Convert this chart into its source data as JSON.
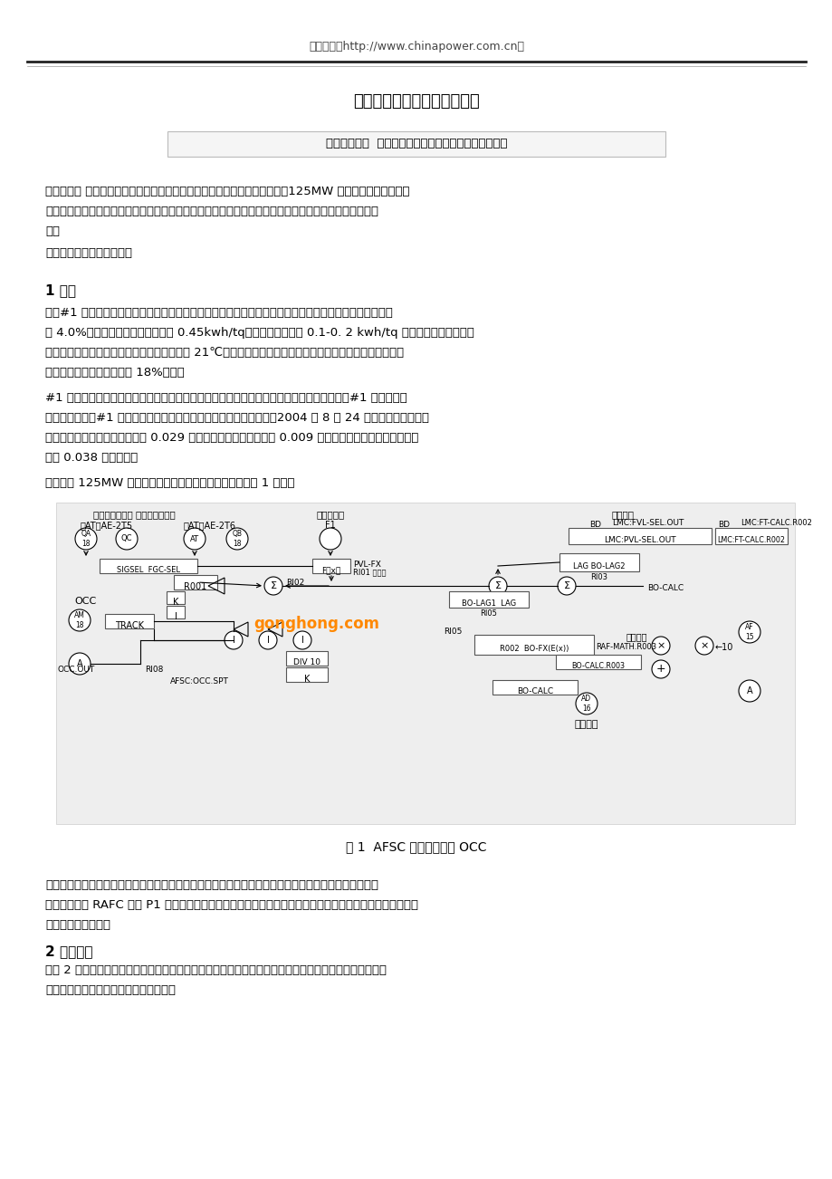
{
  "title": "氧化锆分析仪测氧原理及应用",
  "author_line": "作者：侯典来  单位：中国国电集团公司菏泽发电厂热工",
  "abstract_lines": [
    "【摘要：】 本文通过氧化锆分析仪在菏泽电厂的成功应用案例，详细论述了125MW 机组锅炉采用氧化锆氧",
    "量变送器测定烟气中的含氧量工作原理，仪器结构、性能和标定方法，锆头安装与更换，故障判断和消除",
    "等。"
  ],
  "keyword_line": "【关键词：】氧化锆，标定",
  "section1_title": "1 前言",
  "section1_para1_lines": [
    "针对#1 机组送风单耗升高、氧量高负荷上不去问题进行了全面分析，通过检查发现，送风机全开，氧量只",
    "有 4.0%左右，同时送风机单耗上升 0.45kwh/tq，引风机单耗也有 0.1-0. 2 kwh/tq 的升高，同时甲侧烟道",
    "件随排烟温度降低，甲侧排烟温度约比乙侧低 21℃，判断为预热器甲侧漏风，安排热力试验进行漏风测试，",
    "发现甲侧预热器漏风率高达 18%以上。"
  ],
  "section1_para2_lines": [
    "#1 炉预热器甲侧漏风严重，严重影响送风单耗，高负荷氧量上不去，利用停炉机会检查消除#1 炉预热器内",
    "部漏风点。本次#1 炉停炉备用期间，对预热器漏风管子进行了封堵，2004 年 8 月 24 日开机后观察，同负",
    "荷、同氧量下，送风耗电率降低 0.029 个百分点，引风耗电率降低 0.009 个百分点，送、引风耗电率合计",
    "降低 0.038 个百分点。"
  ],
  "section1_para3": "菏泽电厂 125MW 机组采用氧量信号校正风量指令，如下图 1 所示。",
  "fig1_caption": "图 1  AFSC 氧量校正回路 OCC",
  "wind_para_lines": [
    "风量指令送至送风控制系统，去控制甲乙送风机偶合器勾管开度，从而控制送风量；风量指令与实际送风",
    "量的偏差经过 RAFC 块的 P1 运算输出，作为前馈信号引入引风控制系统，控制甲乙引风机偶合器勾管开度，",
    "从而控制炉膛负压。"
  ],
  "section2_title": "2 测氧原理",
  "section2_para1_lines": [
    "如图 2 所示，在氧化锆管底的内外表面有两个铂电极，即参比电极和测量电极，分别带有两根铂引线，构",
    "成一个氧化锆测氧电池，即氧浓差电池。"
  ],
  "header_text": "中国电力（http://www.chinapower.com.cn）",
  "bg_color": "#ffffff",
  "text_color": "#000000",
  "header_color": "#555555"
}
